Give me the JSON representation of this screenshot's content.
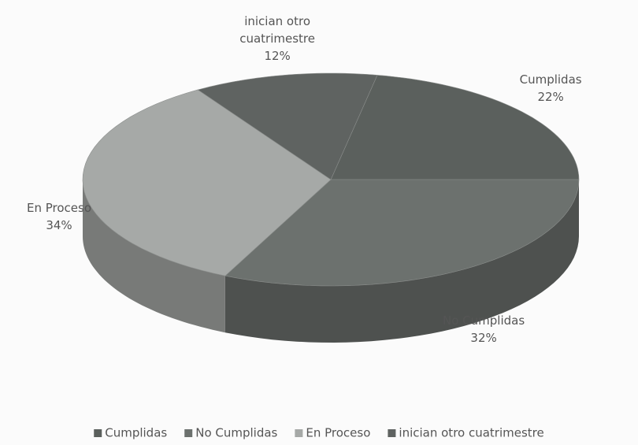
{
  "chart_data": {
    "type": "pie3d",
    "categories": [
      "Cumplidas",
      "No Cumplidas",
      "En Proceso",
      "inician otro cuatrimestre"
    ],
    "values": [
      22,
      32,
      34,
      12
    ],
    "value_labels": [
      "22%",
      "32%",
      "34%",
      "12%"
    ],
    "colors": [
      "#5b605d",
      "#6c716e",
      "#a6a9a7",
      "#5f6361"
    ],
    "legend": "bottom"
  }
}
